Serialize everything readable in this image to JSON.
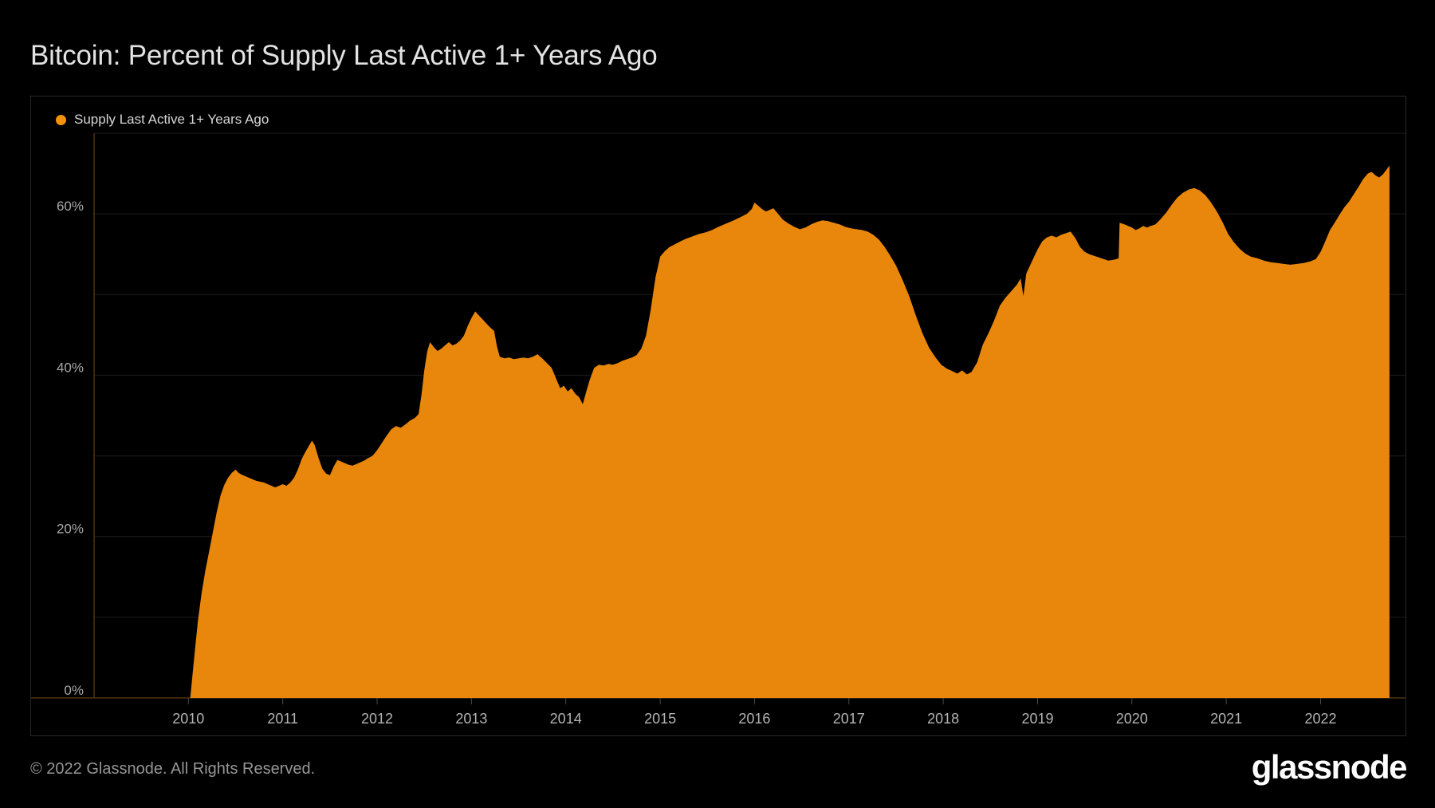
{
  "page": {
    "background": "#000000"
  },
  "header": {
    "title": "Bitcoin: Percent of Supply Last Active 1+ Years Ago"
  },
  "legend": {
    "label": "Supply Last Active 1+ Years Ago",
    "dot_color": "#f2930f"
  },
  "footer": {
    "copyright": "© 2022 Glassnode. All Rights Reserved.",
    "brand": "glassnode"
  },
  "colors": {
    "area_fill": "#e8870c",
    "legend_dot": "#f2930f",
    "grid_line": "#1d1d1d",
    "axis_line": "#4e3210",
    "tick_line": "#474747",
    "panel_border": "#282828",
    "x_label": "#b3b3b3",
    "y_label": "#a9a9a9",
    "title_text": "#e2e2e2",
    "background": "#000000"
  },
  "chart_data": {
    "type": "area",
    "title": "Bitcoin: Percent of Supply Last Active 1+ Years Ago",
    "series_name": "Supply Last Active 1+ Years Ago",
    "x_unit": "year",
    "x_range": [
      2009.0,
      2022.9
    ],
    "y_range": [
      0,
      70
    ],
    "grid_values": [
      10,
      20,
      30,
      40,
      50,
      60,
      70
    ],
    "y_ticks": [
      {
        "value": 0,
        "label": "0%"
      },
      {
        "value": 20,
        "label": "20%"
      },
      {
        "value": 40,
        "label": "40%"
      },
      {
        "value": 60,
        "label": "60%"
      }
    ],
    "x_ticks": [
      2010,
      2011,
      2012,
      2013,
      2014,
      2015,
      2016,
      2017,
      2018,
      2019,
      2020,
      2021,
      2022
    ],
    "legend_position": "top-left",
    "grid": "horizontal-only",
    "points": [
      [
        2010.02,
        0
      ],
      [
        2010.04,
        2.5
      ],
      [
        2010.07,
        6
      ],
      [
        2010.1,
        9.5
      ],
      [
        2010.14,
        13
      ],
      [
        2010.18,
        15.8
      ],
      [
        2010.22,
        18.2
      ],
      [
        2010.26,
        20.6
      ],
      [
        2010.3,
        23
      ],
      [
        2010.34,
        25.1
      ],
      [
        2010.38,
        26.4
      ],
      [
        2010.42,
        27.3
      ],
      [
        2010.46,
        27.9
      ],
      [
        2010.5,
        28.3
      ],
      [
        2010.53,
        27.9
      ],
      [
        2010.56,
        27.7
      ],
      [
        2010.6,
        27.5
      ],
      [
        2010.64,
        27.3
      ],
      [
        2010.68,
        27.1
      ],
      [
        2010.72,
        26.9
      ],
      [
        2010.76,
        26.8
      ],
      [
        2010.8,
        26.7
      ],
      [
        2010.84,
        26.5
      ],
      [
        2010.88,
        26.3
      ],
      [
        2010.92,
        26.1
      ],
      [
        2010.96,
        26.3
      ],
      [
        2011,
        26.5
      ],
      [
        2011.04,
        26.3
      ],
      [
        2011.08,
        26.7
      ],
      [
        2011.12,
        27.3
      ],
      [
        2011.16,
        28.3
      ],
      [
        2011.2,
        29.6
      ],
      [
        2011.24,
        30.5
      ],
      [
        2011.28,
        31.3
      ],
      [
        2011.31,
        31.9
      ],
      [
        2011.34,
        31.3
      ],
      [
        2011.38,
        29.7
      ],
      [
        2011.42,
        28.4
      ],
      [
        2011.46,
        27.8
      ],
      [
        2011.5,
        27.6
      ],
      [
        2011.54,
        28.7
      ],
      [
        2011.58,
        29.5
      ],
      [
        2011.62,
        29.3
      ],
      [
        2011.66,
        29.1
      ],
      [
        2011.7,
        28.9
      ],
      [
        2011.74,
        28.8
      ],
      [
        2011.78,
        29
      ],
      [
        2011.82,
        29.2
      ],
      [
        2011.86,
        29.4
      ],
      [
        2011.9,
        29.7
      ],
      [
        2011.95,
        30
      ],
      [
        2012,
        30.7
      ],
      [
        2012.05,
        31.6
      ],
      [
        2012.1,
        32.5
      ],
      [
        2012.15,
        33.3
      ],
      [
        2012.2,
        33.7
      ],
      [
        2012.25,
        33.5
      ],
      [
        2012.3,
        33.9
      ],
      [
        2012.35,
        34.4
      ],
      [
        2012.4,
        34.7
      ],
      [
        2012.44,
        35.2
      ],
      [
        2012.47,
        37.6
      ],
      [
        2012.5,
        40.6
      ],
      [
        2012.53,
        42.9
      ],
      [
        2012.56,
        44.1
      ],
      [
        2012.6,
        43.5
      ],
      [
        2012.64,
        43
      ],
      [
        2012.68,
        43.3
      ],
      [
        2012.72,
        43.7
      ],
      [
        2012.76,
        44.1
      ],
      [
        2012.8,
        43.7
      ],
      [
        2012.84,
        43.9
      ],
      [
        2012.88,
        44.3
      ],
      [
        2012.92,
        44.9
      ],
      [
        2012.96,
        46.1
      ],
      [
        2013,
        47.1
      ],
      [
        2013.04,
        47.9
      ],
      [
        2013.08,
        47.4
      ],
      [
        2013.12,
        46.9
      ],
      [
        2013.16,
        46.4
      ],
      [
        2013.2,
        45.9
      ],
      [
        2013.24,
        45.5
      ],
      [
        2013.27,
        43.6
      ],
      [
        2013.3,
        42.3
      ],
      [
        2013.35,
        42.1
      ],
      [
        2013.4,
        42.2
      ],
      [
        2013.45,
        42
      ],
      [
        2013.5,
        42.1
      ],
      [
        2013.55,
        42.2
      ],
      [
        2013.6,
        42.1
      ],
      [
        2013.65,
        42.3
      ],
      [
        2013.7,
        42.6
      ],
      [
        2013.75,
        42.1
      ],
      [
        2013.8,
        41.5
      ],
      [
        2013.85,
        40.9
      ],
      [
        2013.9,
        39.5
      ],
      [
        2013.94,
        38.4
      ],
      [
        2013.98,
        38.7
      ],
      [
        2014.02,
        38
      ],
      [
        2014.06,
        38.4
      ],
      [
        2014.1,
        37.7
      ],
      [
        2014.14,
        37.3
      ],
      [
        2014.18,
        36.4
      ],
      [
        2014.21,
        37.7
      ],
      [
        2014.25,
        39.3
      ],
      [
        2014.3,
        40.9
      ],
      [
        2014.35,
        41.3
      ],
      [
        2014.4,
        41.2
      ],
      [
        2014.45,
        41.4
      ],
      [
        2014.5,
        41.3
      ],
      [
        2014.55,
        41.5
      ],
      [
        2014.6,
        41.8
      ],
      [
        2014.65,
        42
      ],
      [
        2014.7,
        42.2
      ],
      [
        2014.75,
        42.5
      ],
      [
        2014.8,
        43.3
      ],
      [
        2014.85,
        44.9
      ],
      [
        2014.9,
        48.1
      ],
      [
        2014.95,
        52.1
      ],
      [
        2015,
        54.7
      ],
      [
        2015.05,
        55.4
      ],
      [
        2015.1,
        55.9
      ],
      [
        2015.15,
        56.2
      ],
      [
        2015.2,
        56.5
      ],
      [
        2015.27,
        56.9
      ],
      [
        2015.34,
        57.2
      ],
      [
        2015.41,
        57.5
      ],
      [
        2015.48,
        57.7
      ],
      [
        2015.55,
        58
      ],
      [
        2015.62,
        58.4
      ],
      [
        2015.7,
        58.8
      ],
      [
        2015.78,
        59.2
      ],
      [
        2015.85,
        59.6
      ],
      [
        2015.92,
        60
      ],
      [
        2015.97,
        60.6
      ],
      [
        2016,
        61.4
      ],
      [
        2016.04,
        61
      ],
      [
        2016.08,
        60.6
      ],
      [
        2016.12,
        60.3
      ],
      [
        2016.16,
        60.5
      ],
      [
        2016.2,
        60.7
      ],
      [
        2016.25,
        60
      ],
      [
        2016.3,
        59.3
      ],
      [
        2016.36,
        58.8
      ],
      [
        2016.42,
        58.4
      ],
      [
        2016.48,
        58.1
      ],
      [
        2016.54,
        58.3
      ],
      [
        2016.6,
        58.7
      ],
      [
        2016.66,
        59
      ],
      [
        2016.72,
        59.2
      ],
      [
        2016.78,
        59.1
      ],
      [
        2016.84,
        58.9
      ],
      [
        2016.9,
        58.7
      ],
      [
        2016.96,
        58.4
      ],
      [
        2017.02,
        58.2
      ],
      [
        2017.08,
        58.1
      ],
      [
        2017.14,
        58
      ],
      [
        2017.2,
        57.8
      ],
      [
        2017.26,
        57.4
      ],
      [
        2017.32,
        56.8
      ],
      [
        2017.38,
        55.9
      ],
      [
        2017.44,
        54.8
      ],
      [
        2017.5,
        53.6
      ],
      [
        2017.57,
        51.8
      ],
      [
        2017.64,
        49.8
      ],
      [
        2017.71,
        47.4
      ],
      [
        2017.78,
        45.2
      ],
      [
        2017.85,
        43.4
      ],
      [
        2017.92,
        42.2
      ],
      [
        2017.98,
        41.3
      ],
      [
        2018.04,
        40.8
      ],
      [
        2018.1,
        40.5
      ],
      [
        2018.15,
        40.2
      ],
      [
        2018.2,
        40.6
      ],
      [
        2018.25,
        40.1
      ],
      [
        2018.3,
        40.4
      ],
      [
        2018.36,
        41.6
      ],
      [
        2018.42,
        43.8
      ],
      [
        2018.48,
        45.2
      ],
      [
        2018.54,
        46.8
      ],
      [
        2018.6,
        48.6
      ],
      [
        2018.66,
        49.6
      ],
      [
        2018.72,
        50.4
      ],
      [
        2018.78,
        51.2
      ],
      [
        2018.82,
        52
      ],
      [
        2018.85,
        49.8
      ],
      [
        2018.88,
        52.6
      ],
      [
        2018.92,
        53.6
      ],
      [
        2018.96,
        54.6
      ],
      [
        2019,
        55.6
      ],
      [
        2019.05,
        56.6
      ],
      [
        2019.1,
        57.1
      ],
      [
        2019.15,
        57.3
      ],
      [
        2019.2,
        57.1
      ],
      [
        2019.25,
        57.4
      ],
      [
        2019.3,
        57.6
      ],
      [
        2019.35,
        57.8
      ],
      [
        2019.4,
        57
      ],
      [
        2019.45,
        55.9
      ],
      [
        2019.5,
        55.3
      ],
      [
        2019.55,
        55
      ],
      [
        2019.6,
        54.8
      ],
      [
        2019.65,
        54.6
      ],
      [
        2019.7,
        54.4
      ],
      [
        2019.75,
        54.2
      ],
      [
        2019.8,
        54.3
      ],
      [
        2019.84,
        54.4
      ],
      [
        2019.86,
        54.5
      ],
      [
        2019.87,
        58.9
      ],
      [
        2019.92,
        58.7
      ],
      [
        2019.96,
        58.5
      ],
      [
        2020,
        58.3
      ],
      [
        2020.04,
        58
      ],
      [
        2020.08,
        58.2
      ],
      [
        2020.12,
        58.5
      ],
      [
        2020.16,
        58.3
      ],
      [
        2020.2,
        58.5
      ],
      [
        2020.25,
        58.7
      ],
      [
        2020.3,
        59.3
      ],
      [
        2020.36,
        60.1
      ],
      [
        2020.42,
        61.1
      ],
      [
        2020.48,
        62
      ],
      [
        2020.54,
        62.6
      ],
      [
        2020.6,
        63
      ],
      [
        2020.66,
        63.2
      ],
      [
        2020.72,
        62.9
      ],
      [
        2020.78,
        62.3
      ],
      [
        2020.84,
        61.4
      ],
      [
        2020.9,
        60.3
      ],
      [
        2020.96,
        59
      ],
      [
        2021.02,
        57.5
      ],
      [
        2021.08,
        56.5
      ],
      [
        2021.14,
        55.7
      ],
      [
        2021.2,
        55.1
      ],
      [
        2021.26,
        54.7
      ],
      [
        2021.33,
        54.5
      ],
      [
        2021.4,
        54.2
      ],
      [
        2021.47,
        54
      ],
      [
        2021.54,
        53.9
      ],
      [
        2021.61,
        53.8
      ],
      [
        2021.68,
        53.7
      ],
      [
        2021.75,
        53.8
      ],
      [
        2021.82,
        53.9
      ],
      [
        2021.89,
        54.1
      ],
      [
        2021.95,
        54.4
      ],
      [
        2022,
        55.3
      ],
      [
        2022.05,
        56.6
      ],
      [
        2022.1,
        58
      ],
      [
        2022.15,
        58.9
      ],
      [
        2022.2,
        59.9
      ],
      [
        2022.25,
        60.8
      ],
      [
        2022.3,
        61.5
      ],
      [
        2022.35,
        62.4
      ],
      [
        2022.4,
        63.3
      ],
      [
        2022.45,
        64.3
      ],
      [
        2022.5,
        65
      ],
      [
        2022.54,
        65.2
      ],
      [
        2022.58,
        64.8
      ],
      [
        2022.62,
        64.5
      ],
      [
        2022.66,
        64.9
      ],
      [
        2022.7,
        65.5
      ],
      [
        2022.73,
        66
      ]
    ]
  }
}
